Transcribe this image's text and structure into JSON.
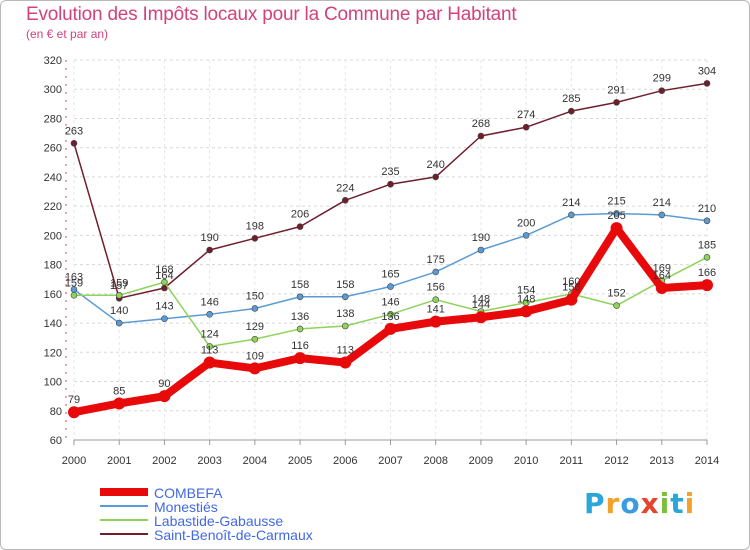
{
  "title": "Evolution des Impôts locaux pour la Commune par Habitant",
  "subtitle": "(en € et par an)",
  "logo": {
    "text": "Proxiti",
    "letters": [
      {
        "char": "P",
        "color": "#2aa6d8"
      },
      {
        "char": "r",
        "color": "#f2a12a"
      },
      {
        "char": "o",
        "color": "#3b9be0"
      },
      {
        "char": "x",
        "color": "#e2462c"
      },
      {
        "char": "i",
        "color": "#7cbf3a"
      },
      {
        "char": "t",
        "color": "#2aa6d8"
      },
      {
        "char": "i",
        "color": "#f2a12a"
      }
    ]
  },
  "chart_data": {
    "type": "line",
    "x": [
      "2000",
      "2001",
      "2002",
      "2003",
      "2004",
      "2005",
      "2006",
      "2007",
      "2008",
      "2009",
      "2010",
      "2011",
      "2012",
      "2013",
      "2014"
    ],
    "ylim": [
      60,
      320
    ],
    "yticks": [
      60,
      80,
      100,
      120,
      140,
      160,
      180,
      200,
      220,
      240,
      260,
      280,
      300,
      320
    ],
    "grid": "horizontal dashed",
    "legend_placement": "bottom-left",
    "series": [
      {
        "name": "Saint-Benoît-de-Carmaux",
        "color": "#6e1f2b",
        "width": 1.5,
        "marker": 3,
        "values": [
          263,
          157,
          164,
          190,
          198,
          206,
          224,
          235,
          240,
          268,
          274,
          285,
          291,
          299,
          304
        ]
      },
      {
        "name": "Monestiés",
        "color": "#5b9bd5",
        "width": 1.5,
        "marker": 3,
        "values": [
          163,
          140,
          143,
          146,
          150,
          158,
          158,
          165,
          175,
          190,
          200,
          214,
          215,
          214,
          210
        ]
      },
      {
        "name": "Labastide-Gabausse",
        "color": "#8ed35a",
        "width": 1.5,
        "marker": 3,
        "values": [
          159,
          159,
          168,
          124,
          129,
          136,
          138,
          146,
          156,
          148,
          154,
          160,
          152,
          169,
          185
        ]
      },
      {
        "name": "COMBEFA",
        "color": "#e8090b",
        "width": 8,
        "marker": 6,
        "values": [
          79,
          85,
          90,
          113,
          109,
          116,
          113,
          136,
          141,
          144,
          148,
          156,
          205,
          164,
          166
        ]
      }
    ],
    "legend_order": [
      "COMBEFA",
      "Monestiés",
      "Labastide-Gabausse",
      "Saint-Benoît-de-Carmaux"
    ]
  }
}
